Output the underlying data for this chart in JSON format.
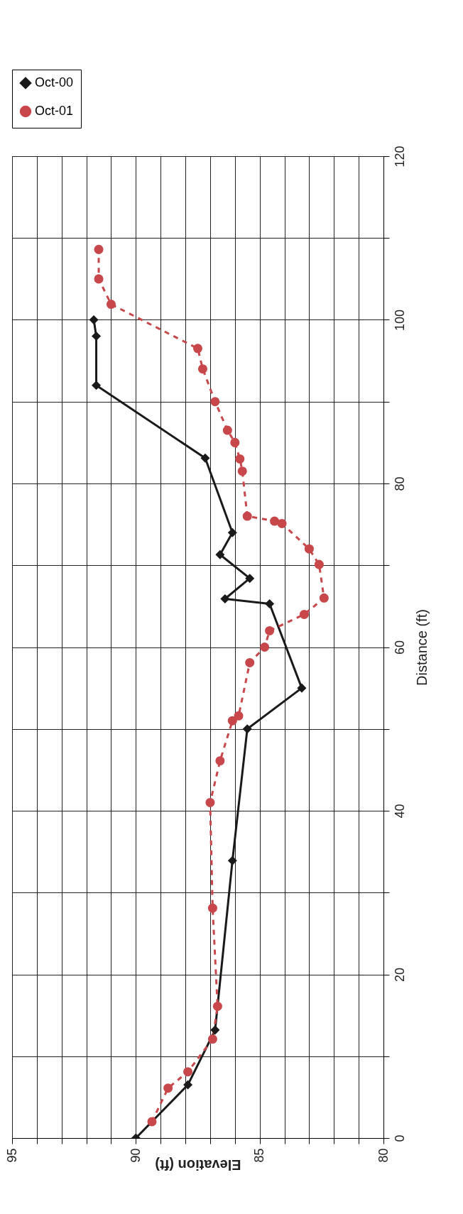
{
  "chart_data": {
    "type": "line",
    "xlabel": "Elevation (ft)",
    "ylabel": "Distance (ft)",
    "xlim": [
      95,
      80
    ],
    "xticks": [
      95,
      {
        "value": 94,
        "label": null
      },
      {
        "value": 93,
        "label": null
      },
      {
        "value": 92,
        "label": null
      },
      {
        "value": 91,
        "label": null
      },
      90,
      {
        "value": 89,
        "label": null
      },
      {
        "value": 88,
        "label": null
      },
      {
        "value": 87,
        "label": null
      },
      {
        "value": 86,
        "label": null
      },
      85,
      {
        "value": 84,
        "label": null
      },
      {
        "value": 83,
        "label": null
      },
      {
        "value": 82,
        "label": null
      },
      {
        "value": 81,
        "label": null
      },
      80
    ],
    "ylim": [
      0,
      120
    ],
    "yticks": [
      0,
      {
        "value": 10,
        "label": null
      },
      20,
      {
        "value": 30,
        "label": null
      },
      40,
      {
        "value": 50,
        "label": null
      },
      60,
      {
        "value": 70,
        "label": null
      },
      80,
      {
        "value": 90,
        "label": null
      },
      100,
      {
        "value": 110,
        "label": null
      },
      120
    ],
    "grid": true,
    "legend": "top",
    "series": [
      {
        "name": "Oct-00",
        "color": "#1a1a1a",
        "marker": "diamond",
        "line_style": "solid",
        "x": [
          90.0,
          87.9,
          86.8,
          86.1,
          85.5,
          83.3,
          84.6,
          86.4,
          85.4,
          86.6,
          86.1,
          87.2,
          91.6,
          91.6,
          91.7
        ],
        "values": [
          0,
          6.5,
          13.2,
          33.9,
          50,
          55,
          65.3,
          65.9,
          68.4,
          71.3,
          74.0,
          83.1,
          92.0,
          98.0,
          100
        ]
      },
      {
        "name": "Oct-01",
        "color": "#c8474a",
        "marker": "circle",
        "line_style": "dashed",
        "x": [
          89.35,
          88.7,
          87.9,
          86.9,
          86.7,
          86.9,
          87.0,
          86.6,
          86.1,
          85.85,
          85.4,
          84.8,
          84.6,
          83.2,
          82.4,
          82.6,
          83.0,
          84.1,
          84.4,
          85.5,
          85.7,
          85.8,
          86.0,
          86.3,
          86.8,
          87.3,
          87.5,
          91.0,
          91.5,
          91.5
        ],
        "values": [
          2.0,
          6.1,
          8.1,
          12.1,
          16.1,
          28.1,
          41.0,
          46.1,
          51.0,
          51.6,
          58.1,
          60,
          62.0,
          64.0,
          66.0,
          70.1,
          72.0,
          75.1,
          75.4,
          76.0,
          81.5,
          83.0,
          85.0,
          86.5,
          90,
          94.0,
          96.5,
          101.9,
          105,
          108.6
        ]
      }
    ]
  }
}
